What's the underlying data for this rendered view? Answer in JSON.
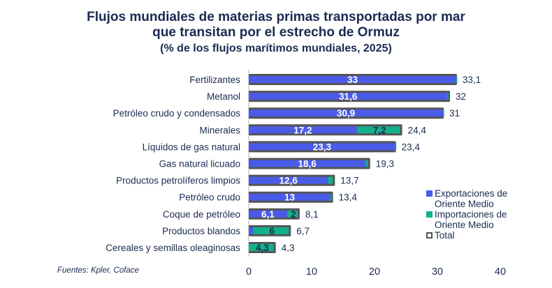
{
  "chart_data": {
    "type": "bar",
    "orientation": "horizontal",
    "stacked": true,
    "title": "Flujos mundiales de materias primas transportadas por mar",
    "title_line2": "que transitan por el estrecho de Ormuz",
    "subtitle": "(% de los flujos marítimos mundiales, 2025)",
    "xlabel": "",
    "ylabel": "",
    "xlim": [
      0,
      40
    ],
    "xticks": [
      "0",
      "10",
      "20",
      "30",
      "40"
    ],
    "grid": false,
    "legend_position": "right",
    "categories": [
      "Fertilizantes",
      "Metanol",
      "Petróleo crudo y condensados",
      "Minerales",
      "Líquidos de gas natural",
      "Gas natural licuado",
      "Productos petrolíferos limpios",
      "Petróleo crudo",
      "Coque de petróleo",
      "Productos blandos",
      "Cereales y semillas oleaginosas"
    ],
    "series": [
      {
        "name": "Exportaciones de Oriente Medio",
        "color": "#4a5be8",
        "values": [
          33,
          31.6,
          30.9,
          17.2,
          23.3,
          18.6,
          12.6,
          13,
          6.1,
          0.7,
          0
        ],
        "labels": [
          "33",
          "31,6",
          "30,9",
          "17,2",
          "23,3",
          "18,6",
          "12,6",
          "13",
          "6,1",
          "",
          ""
        ]
      },
      {
        "name": "Importaciones de Oriente Medio",
        "color": "#13b18a",
        "values": [
          0.1,
          0.4,
          0.1,
          7.2,
          0.1,
          0.7,
          1.1,
          0.4,
          2,
          6,
          4.3
        ],
        "labels": [
          "",
          "",
          "",
          "7,2",
          "",
          "",
          "",
          "",
          "2",
          "6",
          "4,3"
        ]
      },
      {
        "name": "Total",
        "color": "#555555",
        "values": [
          33.1,
          32,
          31,
          24.4,
          23.4,
          19.3,
          13.7,
          13.4,
          8.1,
          6.7,
          4.3
        ],
        "labels": [
          "33,1",
          "32",
          "31",
          "24,4",
          "23,4",
          "19,3",
          "13,7",
          "13,4",
          "8,1",
          "6,7",
          "4,3"
        ]
      }
    ]
  },
  "source": "Fuentes: Kpler, Coface"
}
